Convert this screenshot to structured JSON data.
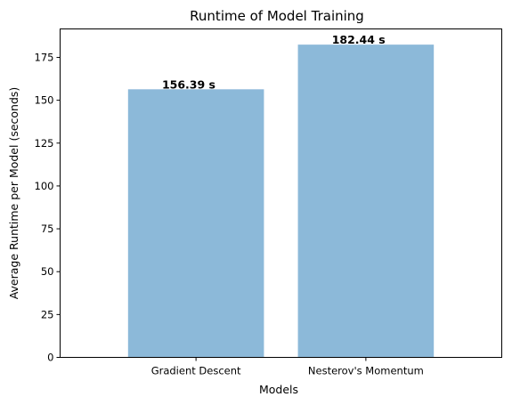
{
  "chart_data": {
    "type": "bar",
    "title": "Runtime of Model Training",
    "xlabel": "Models",
    "ylabel": "Average Runtime per Model (seconds)",
    "categories": [
      "Gradient Descent",
      "Nesterov's Momentum"
    ],
    "values": [
      156.39,
      182.44
    ],
    "value_labels": [
      "156.39 s",
      "182.44 s"
    ],
    "yticks": [
      0,
      25,
      50,
      75,
      100,
      125,
      150,
      175
    ],
    "ylim": [
      0,
      191.6
    ],
    "grid": false,
    "legend": "none",
    "bar_color": "#8cb9d9"
  }
}
